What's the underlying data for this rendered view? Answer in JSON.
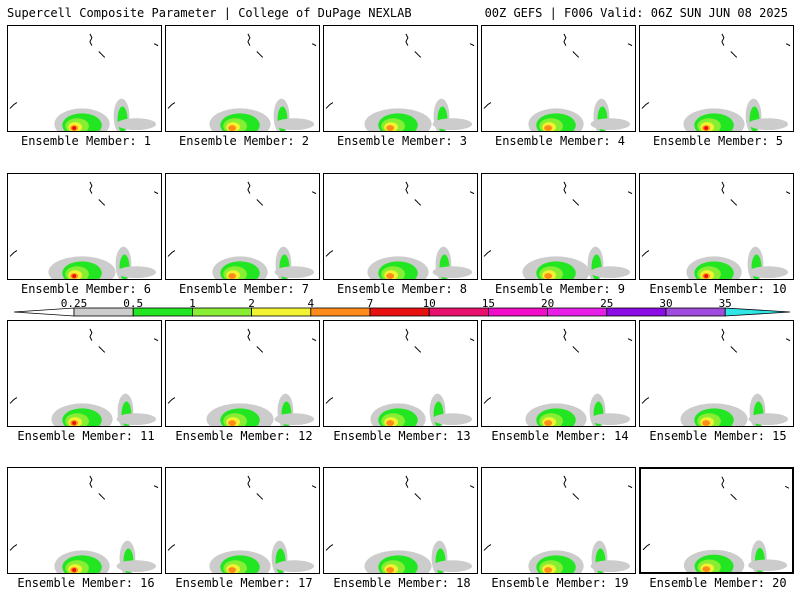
{
  "header": {
    "title": "Supercell Composite Parameter | College of DuPage NEXLAB",
    "run_info": "00Z GEFS | F006 Valid: 06Z SUN JUN 08 2025"
  },
  "colorbar": {
    "labels": [
      "0.25",
      "0.5",
      "1",
      "2",
      "4",
      "7",
      "10",
      "15",
      "20",
      "25",
      "30",
      "35"
    ],
    "colors": [
      "#ffffff",
      "#cccccc",
      "#22e622",
      "#88ee33",
      "#f2f230",
      "#ff8c1a",
      "#e81010",
      "#e8106e",
      "#f00cc8",
      "#e61ee6",
      "#8c0ce6",
      "#a04bde",
      "#30e6e6"
    ]
  },
  "panel_selected_member": 20,
  "panels": [
    {
      "label": "Ensemble Member: 1",
      "variant": 0
    },
    {
      "label": "Ensemble Member: 2",
      "variant": 1
    },
    {
      "label": "Ensemble Member: 3",
      "variant": 2
    },
    {
      "label": "Ensemble Member: 4",
      "variant": 3
    },
    {
      "label": "Ensemble Member: 5",
      "variant": 4
    },
    {
      "label": "Ensemble Member: 6",
      "variant": 5
    },
    {
      "label": "Ensemble Member: 7",
      "variant": 6
    },
    {
      "label": "Ensemble Member: 8",
      "variant": 7
    },
    {
      "label": "Ensemble Member: 9",
      "variant": 8
    },
    {
      "label": "Ensemble Member: 10",
      "variant": 9
    },
    {
      "label": "Ensemble Member: 11",
      "variant": 10
    },
    {
      "label": "Ensemble Member: 12",
      "variant": 11
    },
    {
      "label": "Ensemble Member: 13",
      "variant": 12
    },
    {
      "label": "Ensemble Member: 14",
      "variant": 13
    },
    {
      "label": "Ensemble Member: 15",
      "variant": 14
    },
    {
      "label": "Ensemble Member: 16",
      "variant": 15
    },
    {
      "label": "Ensemble Member: 17",
      "variant": 16
    },
    {
      "label": "Ensemble Member: 18",
      "variant": 17
    },
    {
      "label": "Ensemble Member: 19",
      "variant": 18
    },
    {
      "label": "Ensemble Member: 20",
      "variant": 19
    }
  ]
}
